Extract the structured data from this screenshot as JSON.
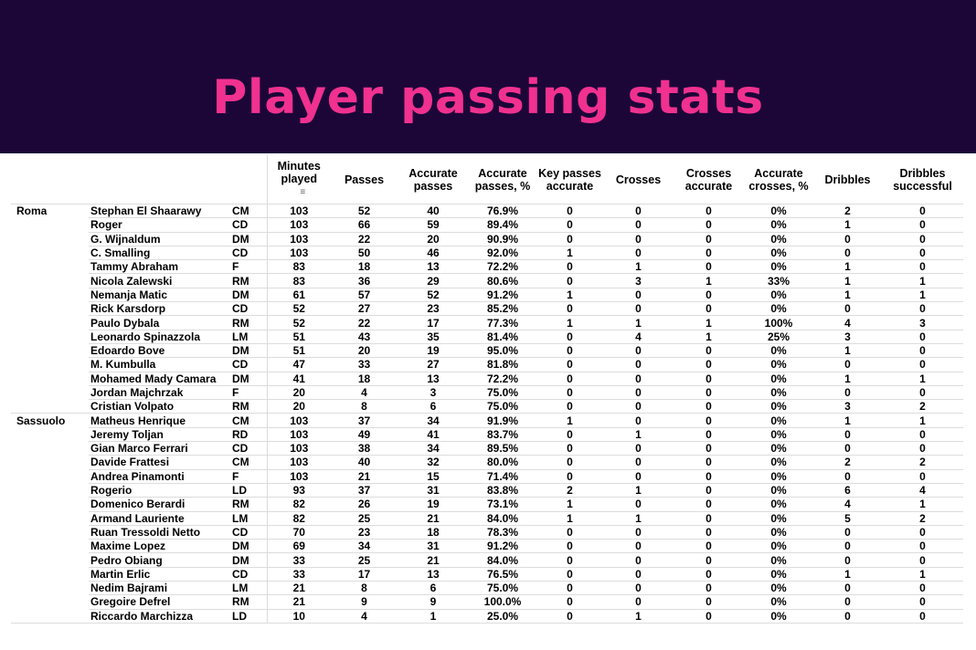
{
  "title": "Player passing stats",
  "colors": {
    "banner": "#1c0638",
    "title": "#f0318f"
  },
  "columns": [
    "",
    "",
    "",
    "Minutes played",
    "Passes",
    "Accurate passes",
    "Accurate passes, %",
    "Key passes accurate",
    "Crosses",
    "Crosses accurate",
    "Accurate crosses, %",
    "Dribbles",
    "Dribbles successful"
  ],
  "sort_icon": "sort-descending-icon",
  "rows": [
    [
      "Roma",
      "Stephan El Shaarawy",
      "CM",
      "103",
      "52",
      "40",
      "76.9%",
      "0",
      "0",
      "0",
      "0%",
      "2",
      "0"
    ],
    [
      "",
      "Roger",
      "CD",
      "103",
      "66",
      "59",
      "89.4%",
      "0",
      "0",
      "0",
      "0%",
      "1",
      "0"
    ],
    [
      "",
      "G. Wijnaldum",
      "DM",
      "103",
      "22",
      "20",
      "90.9%",
      "0",
      "0",
      "0",
      "0%",
      "0",
      "0"
    ],
    [
      "",
      "C. Smalling",
      "CD",
      "103",
      "50",
      "46",
      "92.0%",
      "1",
      "0",
      "0",
      "0%",
      "0",
      "0"
    ],
    [
      "",
      "Tammy Abraham",
      "F",
      "83",
      "18",
      "13",
      "72.2%",
      "0",
      "1",
      "0",
      "0%",
      "1",
      "0"
    ],
    [
      "",
      "Nicola Zalewski",
      "RM",
      "83",
      "36",
      "29",
      "80.6%",
      "0",
      "3",
      "1",
      "33%",
      "1",
      "1"
    ],
    [
      "",
      "Nemanja Matic",
      "DM",
      "61",
      "57",
      "52",
      "91.2%",
      "1",
      "0",
      "0",
      "0%",
      "1",
      "1"
    ],
    [
      "",
      "Rick Karsdorp",
      "CD",
      "52",
      "27",
      "23",
      "85.2%",
      "0",
      "0",
      "0",
      "0%",
      "0",
      "0"
    ],
    [
      "",
      "Paulo Dybala",
      "RM",
      "52",
      "22",
      "17",
      "77.3%",
      "1",
      "1",
      "1",
      "100%",
      "4",
      "3"
    ],
    [
      "",
      "Leonardo Spinazzola",
      "LM",
      "51",
      "43",
      "35",
      "81.4%",
      "0",
      "4",
      "1",
      "25%",
      "3",
      "0"
    ],
    [
      "",
      "Edoardo Bove",
      "DM",
      "51",
      "20",
      "19",
      "95.0%",
      "0",
      "0",
      "0",
      "0%",
      "1",
      "0"
    ],
    [
      "",
      "M. Kumbulla",
      "CD",
      "47",
      "33",
      "27",
      "81.8%",
      "0",
      "0",
      "0",
      "0%",
      "0",
      "0"
    ],
    [
      "",
      "Mohamed Mady Camara",
      "DM",
      "41",
      "18",
      "13",
      "72.2%",
      "0",
      "0",
      "0",
      "0%",
      "1",
      "1"
    ],
    [
      "",
      "Jordan Majchrzak",
      "F",
      "20",
      "4",
      "3",
      "75.0%",
      "0",
      "0",
      "0",
      "0%",
      "0",
      "0"
    ],
    [
      "",
      "Cristian Volpato",
      "RM",
      "20",
      "8",
      "6",
      "75.0%",
      "0",
      "0",
      "0",
      "0%",
      "3",
      "2"
    ],
    [
      "Sassuolo",
      "Matheus Henrique",
      "CM",
      "103",
      "37",
      "34",
      "91.9%",
      "1",
      "0",
      "0",
      "0%",
      "1",
      "1"
    ],
    [
      "",
      "Jeremy Toljan",
      "RD",
      "103",
      "49",
      "41",
      "83.7%",
      "0",
      "1",
      "0",
      "0%",
      "0",
      "0"
    ],
    [
      "",
      "Gian Marco Ferrari",
      "CD",
      "103",
      "38",
      "34",
      "89.5%",
      "0",
      "0",
      "0",
      "0%",
      "0",
      "0"
    ],
    [
      "",
      "Davide Frattesi",
      "CM",
      "103",
      "40",
      "32",
      "80.0%",
      "0",
      "0",
      "0",
      "0%",
      "2",
      "2"
    ],
    [
      "",
      "Andrea Pinamonti",
      "F",
      "103",
      "21",
      "15",
      "71.4%",
      "0",
      "0",
      "0",
      "0%",
      "0",
      "0"
    ],
    [
      "",
      "Rogerio",
      "LD",
      "93",
      "37",
      "31",
      "83.8%",
      "2",
      "1",
      "0",
      "0%",
      "6",
      "4"
    ],
    [
      "",
      "Domenico Berardi",
      "RM",
      "82",
      "26",
      "19",
      "73.1%",
      "1",
      "0",
      "0",
      "0%",
      "4",
      "1"
    ],
    [
      "",
      "Armand Lauriente",
      "LM",
      "82",
      "25",
      "21",
      "84.0%",
      "1",
      "1",
      "0",
      "0%",
      "5",
      "2"
    ],
    [
      "",
      "Ruan Tressoldi Netto",
      "CD",
      "70",
      "23",
      "18",
      "78.3%",
      "0",
      "0",
      "0",
      "0%",
      "0",
      "0"
    ],
    [
      "",
      "Maxime Lopez",
      "DM",
      "69",
      "34",
      "31",
      "91.2%",
      "0",
      "0",
      "0",
      "0%",
      "0",
      "0"
    ],
    [
      "",
      "Pedro Obiang",
      "DM",
      "33",
      "25",
      "21",
      "84.0%",
      "0",
      "0",
      "0",
      "0%",
      "0",
      "0"
    ],
    [
      "",
      "Martin Erlic",
      "CD",
      "33",
      "17",
      "13",
      "76.5%",
      "0",
      "0",
      "0",
      "0%",
      "1",
      "1"
    ],
    [
      "",
      "Nedim Bajrami",
      "LM",
      "21",
      "8",
      "6",
      "75.0%",
      "0",
      "0",
      "0",
      "0%",
      "0",
      "0"
    ],
    [
      "",
      "Gregoire Defrel",
      "RM",
      "21",
      "9",
      "9",
      "100.0%",
      "0",
      "0",
      "0",
      "0%",
      "0",
      "0"
    ],
    [
      "",
      "Riccardo Marchizza",
      "LD",
      "10",
      "4",
      "1",
      "25.0%",
      "0",
      "1",
      "0",
      "0%",
      "0",
      "0"
    ]
  ]
}
